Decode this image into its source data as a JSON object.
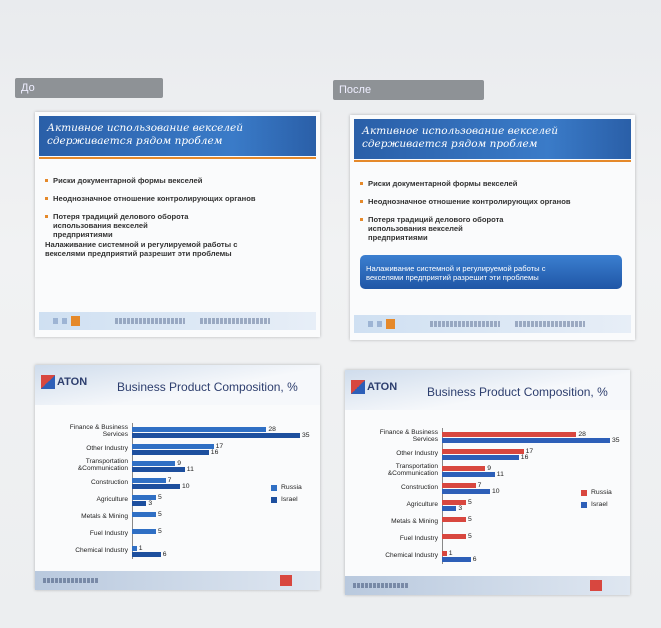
{
  "labels": {
    "before": "До",
    "after": "После"
  },
  "text_slide": {
    "title": "Активное использование векселей сдерживается рядом проблем",
    "bullets": [
      "Риски документарной формы векселей",
      "Неоднозначное отношение контролирующих органов",
      "Потеря традиций делового оборота использования векселей предприятиями"
    ],
    "conclusion": "Налаживание системной и регулируемой работы с векселями предприятий разрешит эти проблемы"
  },
  "logo": "ATON",
  "chart_data": [
    {
      "type": "bar",
      "orientation": "horizontal",
      "title": "Business Product Composition, %",
      "categories": [
        "Finance & Business Services",
        "Other Industry",
        "Transportation &Communication",
        "Construction",
        "Agriculture",
        "Metals & Mining",
        "Fuel Industry",
        "Chemical Industry"
      ],
      "series": [
        {
          "name": "Russia",
          "color": "#2f6fc4",
          "values": [
            28,
            17,
            9,
            7,
            5,
            5,
            5,
            1
          ]
        },
        {
          "name": "Israel",
          "color": "#1d4f9e",
          "values": [
            35,
            16,
            11,
            10,
            3,
            null,
            null,
            6
          ]
        }
      ]
    },
    {
      "type": "bar",
      "orientation": "horizontal",
      "title": "Business Product Composition, %",
      "categories": [
        "Finance & Business Services",
        "Other Industry",
        "Transportation &Communication",
        "Construction",
        "Agriculture",
        "Metals & Mining",
        "Fuel Industry",
        "Chemical Industry"
      ],
      "series": [
        {
          "name": "Russia",
          "color": "#d8473f",
          "values": [
            28,
            17,
            9,
            7,
            5,
            5,
            5,
            1
          ]
        },
        {
          "name": "Israel",
          "color": "#2d5fb8",
          "values": [
            35,
            16,
            11,
            10,
            3,
            null,
            null,
            6
          ]
        }
      ]
    }
  ]
}
